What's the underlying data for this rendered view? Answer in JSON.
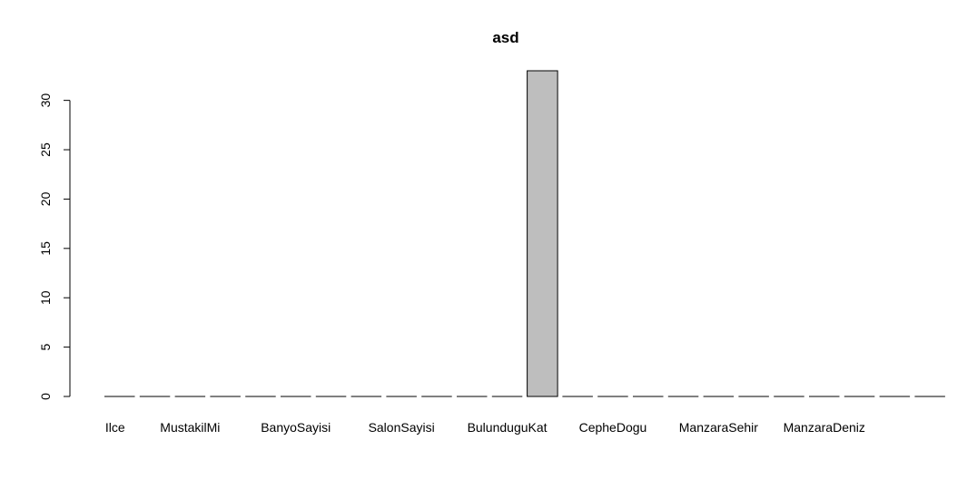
{
  "chart_data": {
    "type": "bar",
    "title": "asd",
    "xlabel": "",
    "ylabel": "",
    "ylim": [
      0,
      33
    ],
    "yticks": [
      0,
      5,
      10,
      15,
      20,
      25,
      30
    ],
    "grid": false,
    "bar_fill": "#bebebe",
    "bar_stroke": "#000000",
    "categories": [
      "",
      "",
      "",
      "",
      "",
      "",
      "",
      "",
      "",
      "",
      "",
      "",
      "",
      "",
      "",
      "",
      "",
      "",
      "",
      "",
      "",
      "",
      "",
      ""
    ],
    "values": [
      0,
      0,
      0,
      0,
      0,
      0,
      0,
      0,
      0,
      0,
      0,
      0,
      33,
      0,
      0,
      0,
      0,
      0,
      0,
      0,
      0,
      0,
      0,
      0
    ],
    "visible_labels": [
      {
        "index": 0,
        "text": "Ilce"
      },
      {
        "index": 2,
        "text": "MustakilMi"
      },
      {
        "index": 5,
        "text": "BanyoSayisi"
      },
      {
        "index": 8,
        "text": "SalonSayisi"
      },
      {
        "index": 11,
        "text": "BulunduguKat"
      },
      {
        "index": 14,
        "text": "CepheDogu"
      },
      {
        "index": 17,
        "text": "ManzaraSehir"
      },
      {
        "index": 20,
        "text": "ManzaraDeniz"
      }
    ]
  }
}
